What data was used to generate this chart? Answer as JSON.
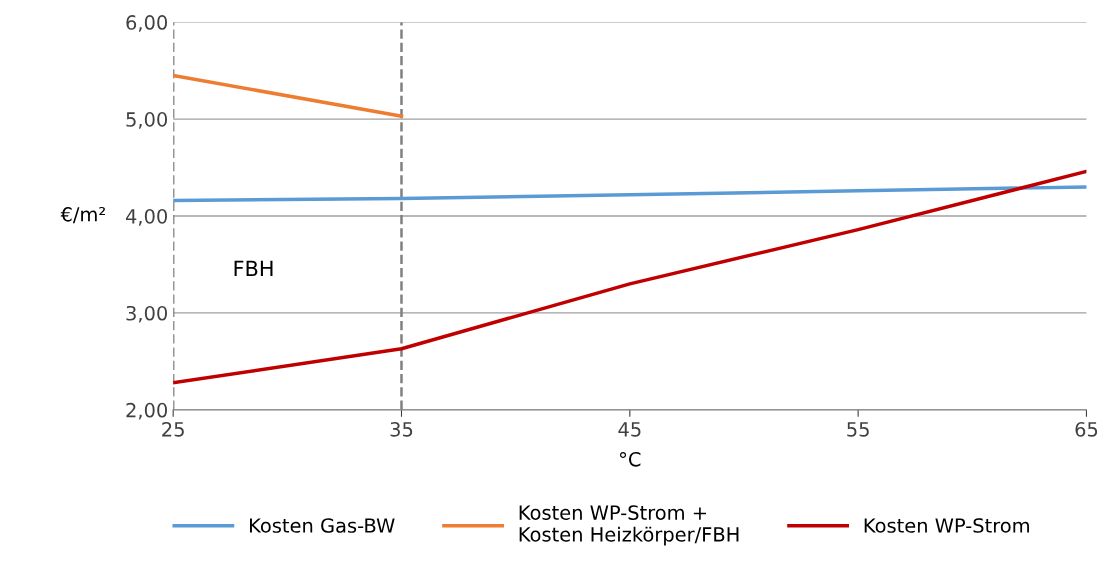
{
  "chart_data": {
    "type": "line",
    "xlabel": "°C",
    "ylabel": "€/m²",
    "x": [
      25,
      35,
      45,
      55,
      65
    ],
    "series": [
      {
        "name": "Kosten Gas-BW",
        "color": "#5b9bd5",
        "values": [
          4.16,
          4.18,
          4.22,
          4.26,
          4.3
        ]
      },
      {
        "name": "Kosten WP-Strom +\nKosten Heizkörper/FBH",
        "color": "#ed7d31",
        "values": [
          5.45,
          5.03,
          null,
          null,
          null
        ]
      },
      {
        "name": "Kosten WP-Strom",
        "color": "#c00000",
        "values": [
          2.28,
          2.63,
          3.3,
          3.86,
          4.46
        ]
      }
    ],
    "xlim": [
      25,
      65
    ],
    "xticks": [
      25,
      35,
      45,
      55,
      65
    ],
    "ylim": [
      2,
      6
    ],
    "yticks": [
      {
        "value": 2,
        "label": "2,00"
      },
      {
        "value": 3,
        "label": "3,00"
      },
      {
        "value": 4,
        "label": "4,00"
      },
      {
        "value": 5,
        "label": "5,00"
      },
      {
        "value": 6,
        "label": "6,00"
      }
    ],
    "ref_lines": [
      {
        "axis": "x",
        "value": 25,
        "color": "#808080",
        "line_style": "dashed"
      },
      {
        "axis": "x",
        "value": 35,
        "color": "#808080",
        "line_style": "dashed"
      }
    ],
    "annotations": [
      "FBH"
    ],
    "grid": "y",
    "legend": "bottom",
    "marker": "none",
    "line_style": "solid"
  }
}
